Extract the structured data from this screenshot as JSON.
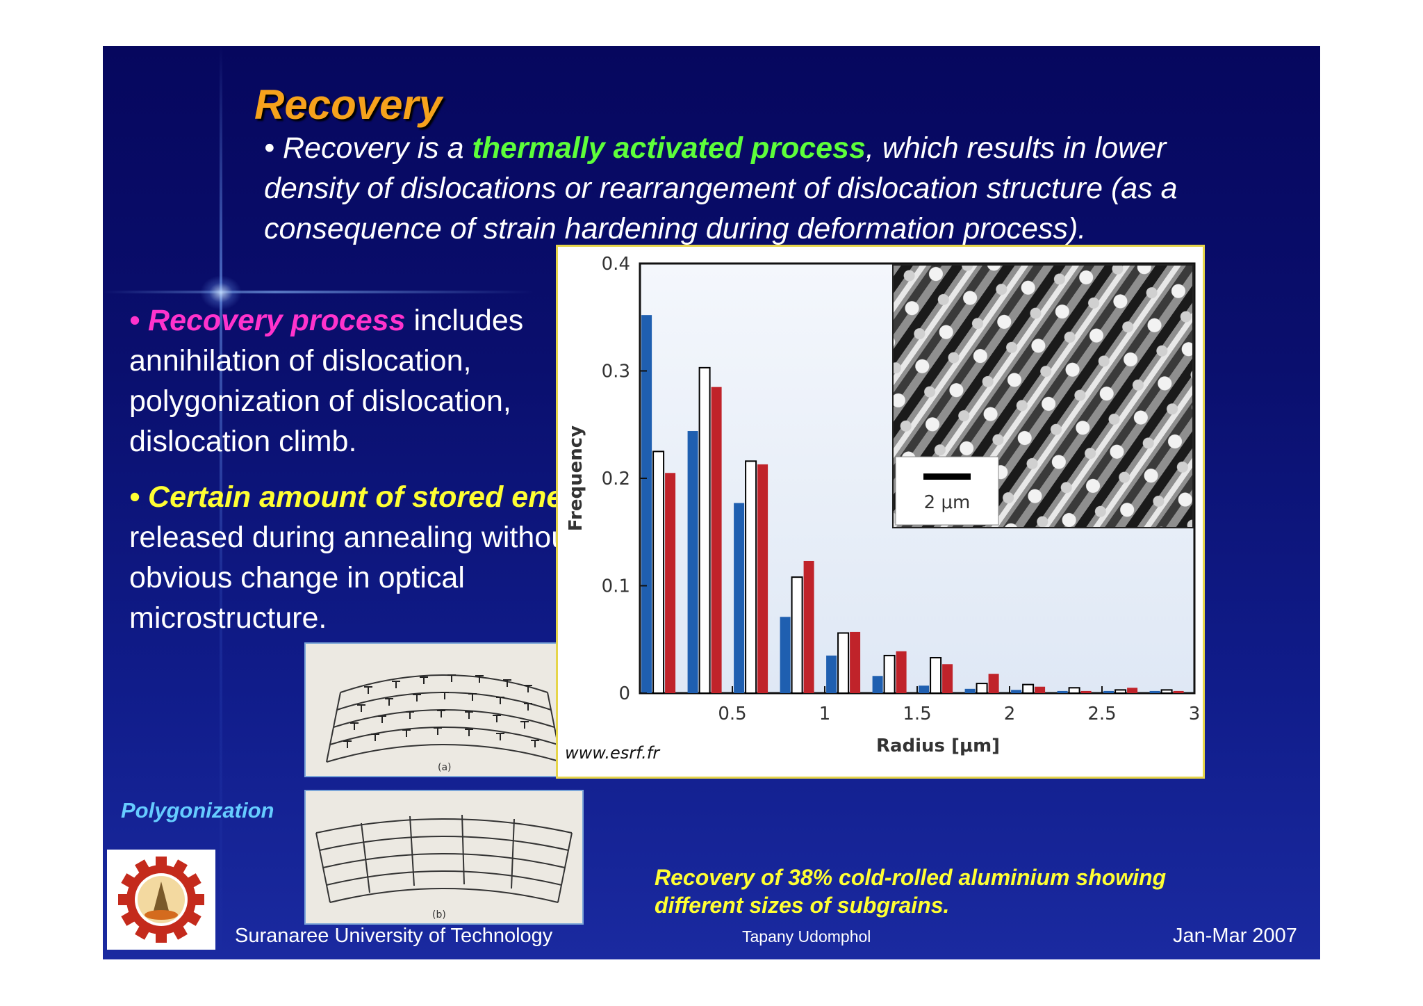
{
  "slide": {
    "title": "Recovery",
    "intro": {
      "prefix": "• Recovery is a ",
      "highlight": "thermally activated process",
      "suffix": ", which results in lower density of dislocations or rearrangement of dislocation structure (as a consequence of strain hardening during deformation process)."
    },
    "bullets": [
      {
        "prefix": "• ",
        "highlight": "Recovery process",
        "text": " includes annihilation of dislocation, polygonization of dislocation, dislocation climb."
      },
      {
        "prefix": "• ",
        "highlight": "Certain amount of stored energy",
        "text": " is released during annealing without an obvious change in optical microstructure."
      }
    ],
    "polygonization_label": "Polygonization",
    "figure_a_label": "(a)",
    "figure_b_label": "(b)",
    "chart_source": "www.esrf.fr",
    "caption": "Recovery of 38% cold-rolled aluminium showing different sizes of subgrains.",
    "footer": {
      "university": "Suranaree University of Technology",
      "author": "Tapany  Udomphol",
      "date": "Jan-Mar   2007"
    },
    "inset_scale": "2 μm",
    "colors": {
      "background": "#0a0f6e",
      "title": "#f6a21c",
      "green_highlight": "#5dff3a",
      "pink_highlight": "#ff33cc",
      "yellow_highlight": "#ffff33",
      "label_blue": "#66ccff"
    }
  },
  "chart_data": {
    "type": "bar",
    "xlabel": "Radius [μm]",
    "ylabel": "Frequency",
    "xlim": [
      0,
      3
    ],
    "ylim": [
      0,
      0.4
    ],
    "xticks": [
      "0.5",
      "1",
      "1.5",
      "2",
      "2.5",
      "3"
    ],
    "yticks": [
      "0",
      "0.1",
      "0.2",
      "0.3",
      "0.4"
    ],
    "categories": [
      0.1,
      0.35,
      0.6,
      0.85,
      1.1,
      1.35,
      1.6,
      1.85,
      2.1,
      2.35,
      2.6,
      2.85
    ],
    "series": [
      {
        "color": "#1f5fb0",
        "values": [
          0.352,
          0.244,
          0.177,
          0.071,
          0.035,
          0.016,
          0.007,
          0.004,
          0.003,
          0.002,
          0.002,
          0.002
        ]
      },
      {
        "color": "#ffffff",
        "values": [
          0.225,
          0.303,
          0.216,
          0.108,
          0.056,
          0.035,
          0.033,
          0.009,
          0.008,
          0.005,
          0.003,
          0.003
        ]
      },
      {
        "color": "#c0232a",
        "values": [
          0.205,
          0.285,
          0.213,
          0.123,
          0.057,
          0.039,
          0.027,
          0.018,
          0.006,
          0.002,
          0.005,
          0.002
        ]
      }
    ],
    "grid": false,
    "legend": "none"
  }
}
